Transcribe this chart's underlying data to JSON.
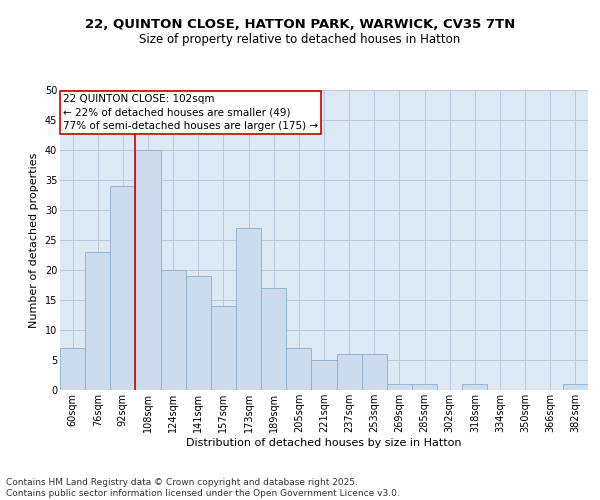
{
  "title_line1": "22, QUINTON CLOSE, HATTON PARK, WARWICK, CV35 7TN",
  "title_line2": "Size of property relative to detached houses in Hatton",
  "categories": [
    "60sqm",
    "76sqm",
    "92sqm",
    "108sqm",
    "124sqm",
    "141sqm",
    "157sqm",
    "173sqm",
    "189sqm",
    "205sqm",
    "221sqm",
    "237sqm",
    "253sqm",
    "269sqm",
    "285sqm",
    "302sqm",
    "318sqm",
    "334sqm",
    "350sqm",
    "366sqm",
    "382sqm"
  ],
  "values": [
    7,
    23,
    34,
    40,
    20,
    19,
    14,
    27,
    17,
    7,
    5,
    6,
    6,
    1,
    1,
    0,
    1,
    0,
    0,
    0,
    1
  ],
  "bar_color": "#cddcec",
  "bar_edge_color": "#8aaec8",
  "bar_linewidth": 0.6,
  "vline_x": 2.5,
  "vline_color": "#cc0000",
  "vline_linewidth": 1.2,
  "ylabel": "Number of detached properties",
  "xlabel": "Distribution of detached houses by size in Hatton",
  "ylim": [
    0,
    50
  ],
  "yticks": [
    0,
    5,
    10,
    15,
    20,
    25,
    30,
    35,
    40,
    45,
    50
  ],
  "annotation_title": "22 QUINTON CLOSE: 102sqm",
  "annotation_line1": "← 22% of detached houses are smaller (49)",
  "annotation_line2": "77% of semi-detached houses are larger (175) →",
  "annotation_box_color": "#ffffff",
  "annotation_box_edge": "#cc0000",
  "grid_color": "#b8c8dc",
  "bg_color": "#dce8f4",
  "footer_line1": "Contains HM Land Registry data © Crown copyright and database right 2025.",
  "footer_line2": "Contains public sector information licensed under the Open Government Licence v3.0.",
  "title_fontsize": 9.5,
  "subtitle_fontsize": 8.5,
  "axis_label_fontsize": 8,
  "tick_fontsize": 7,
  "annotation_fontsize": 7.5,
  "footer_fontsize": 6.5
}
